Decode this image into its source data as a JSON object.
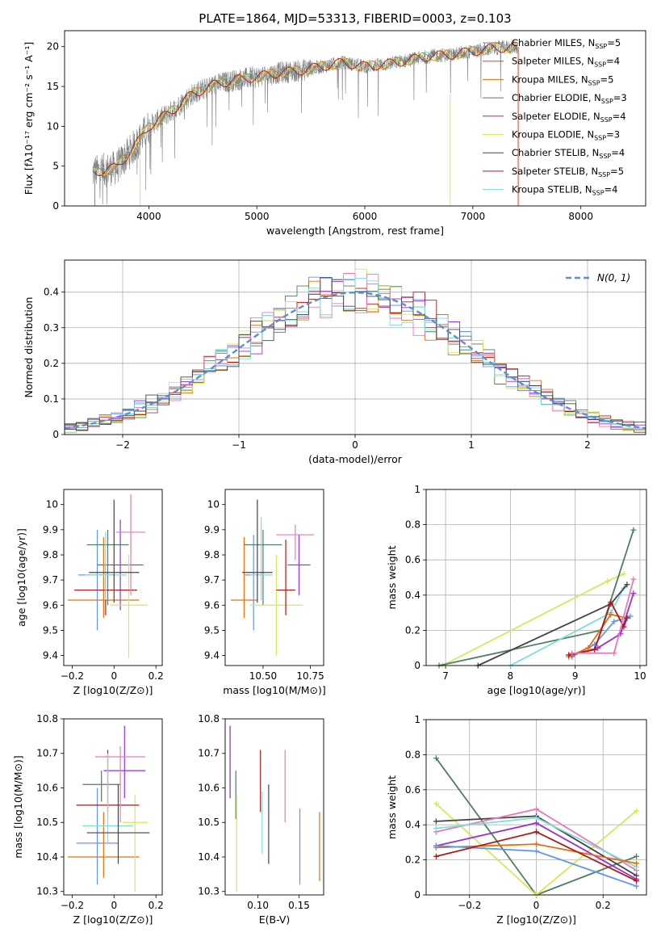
{
  "figure_title": "PLATE=1864, MJD=53313, FIBERID=0003, z=0.103",
  "colors": {
    "Chabrier MILES": "#6495ed",
    "Salpeter MILES": "#9932cc",
    "Kroupa MILES": "#e07010",
    "Chabrier ELODIE": "#4f7f5f",
    "Salpeter ELODIE": "#a020c0",
    "Kroupa ELODIE": "#d6e85a",
    "Chabrier STELIB": "#444444",
    "Salpeter STELIB": "#b01818",
    "Kroupa STELIB": "#7ddcdc",
    "pink": "#e77ab6",
    "data": "#808080",
    "gauss": "#5b8fd6"
  },
  "chart_data": [
    {
      "id": "spectrum",
      "type": "line",
      "xlabel": "wavelength [Angstrom, rest frame]",
      "ylabel": "Flux [fλ10⁻¹⁷ erg cm⁻² s⁻¹ A⁻¹]",
      "xlim": [
        3220,
        8600
      ],
      "ylim": [
        0,
        22
      ],
      "xticks": [
        4000,
        5000,
        6000,
        7000,
        8000
      ],
      "yticks": [
        0,
        5,
        10,
        15,
        20
      ],
      "continuum": {
        "x": [
          3480,
          3700,
          3900,
          4000,
          4200,
          4400,
          4600,
          4800,
          5000,
          5200,
          5400,
          5600,
          5800,
          6000,
          6200,
          6400,
          6600,
          6800,
          7000,
          7200,
          7420
        ],
        "y": [
          4.2,
          4.8,
          8.0,
          10.0,
          11.8,
          14.0,
          15.2,
          15.8,
          16.2,
          16.7,
          17.0,
          17.5,
          18.0,
          17.5,
          17.8,
          18.3,
          18.8,
          19.0,
          19.4,
          19.8,
          20.0
        ]
      },
      "legend": [
        {
          "label": "Chabrier MILES, N",
          "sub": "SSP",
          "tail": "=5",
          "color": "#808080"
        },
        {
          "label": "Salpeter MILES, N",
          "sub": "SSP",
          "tail": "=4",
          "color": "#e04020"
        },
        {
          "label": "Kroupa MILES, N",
          "sub": "SSP",
          "tail": "=5",
          "color": "#e07010"
        },
        {
          "label": "Chabrier ELODIE, N",
          "sub": "SSP",
          "tail": "=3",
          "color": "#4f7f5f"
        },
        {
          "label": "Salpeter ELODIE, N",
          "sub": "SSP",
          "tail": "=4",
          "color": "#a020c0"
        },
        {
          "label": "Kroupa ELODIE, N",
          "sub": "SSP",
          "tail": "=3",
          "color": "#d6e85a"
        },
        {
          "label": "Chabrier STELIB, N",
          "sub": "SSP",
          "tail": "=4",
          "color": "#444444"
        },
        {
          "label": "Salpeter STELIB, N",
          "sub": "SSP",
          "tail": "=5",
          "color": "#b01818"
        },
        {
          "label": "Kroupa STELIB, N",
          "sub": "SSP",
          "tail": "=4",
          "color": "#7ddcdc"
        }
      ]
    },
    {
      "id": "residuals",
      "type": "line",
      "xlabel": "(data-model)/error",
      "ylabel": "Normed distribution",
      "xlim": [
        -2.5,
        2.5
      ],
      "ylim": [
        0,
        0.49
      ],
      "xticks": [
        -2,
        -1,
        0,
        1,
        2
      ],
      "yticks": [
        0.0,
        0.1,
        0.2,
        0.3,
        0.4
      ],
      "legend": "N(0, 1)",
      "bin_width": 0.1,
      "series_colors": [
        "#6495ed",
        "#9932cc",
        "#e07010",
        "#4f7f5f",
        "#d6e85a",
        "#b01818",
        "#e77ab6",
        "#7ddcdc",
        "#444444"
      ]
    },
    {
      "id": "age_vs_Z",
      "type": "scatter",
      "xlabel": "Z [log10(Z/Z⊙)]",
      "ylabel": "age  [log10(age/yr)]",
      "xlim": [
        -0.24,
        0.23
      ],
      "ylim": [
        9.36,
        10.06
      ],
      "xticks": [
        -0.2,
        0.0,
        0.2
      ],
      "yticks": [
        9.4,
        9.5,
        9.6,
        9.7,
        9.8,
        9.9,
        10.0
      ],
      "points": [
        {
          "x": -0.08,
          "y": 9.72,
          "xerr": 0.09,
          "yerr": [
            0.22,
            0.18
          ],
          "c": "#6495ed"
        },
        {
          "x": 0.03,
          "y": 9.76,
          "xerr": 0.11,
          "yerr": [
            0.18,
            0.18
          ],
          "c": "#9932cc"
        },
        {
          "x": -0.05,
          "y": 9.62,
          "xerr": 0.17,
          "yerr": [
            0.07,
            0.25
          ],
          "c": "#e07010"
        },
        {
          "x": -0.03,
          "y": 9.84,
          "xerr": 0.1,
          "yerr": [
            0.24,
            0.06
          ],
          "c": "#4f7f5f"
        },
        {
          "x": 0.07,
          "y": 9.6,
          "xerr": 0.09,
          "yerr": [
            0.21,
            0.2
          ],
          "c": "#d6e85a"
        },
        {
          "x": -0.04,
          "y": 9.66,
          "xerr": 0.15,
          "yerr": [
            0.1,
            0.1
          ],
          "c": "#b01818"
        },
        {
          "x": 0.08,
          "y": 9.89,
          "xerr": 0.07,
          "yerr": [
            0.25,
            0.15
          ],
          "c": "#e77ab6"
        },
        {
          "x": -0.04,
          "y": 9.72,
          "xerr": 0.1,
          "yerr": [
            0.1,
            0.17
          ],
          "c": "#7ddcdc"
        },
        {
          "x": 0.0,
          "y": 9.73,
          "xerr": 0.12,
          "yerr": [
            0.12,
            0.29
          ],
          "c": "#444444"
        }
      ]
    },
    {
      "id": "age_vs_mass",
      "type": "scatter",
      "xlabel": "mass [log10(M/M⊙)]",
      "ylabel": "",
      "xlim": [
        10.3,
        10.82
      ],
      "ylim": [
        9.36,
        10.06
      ],
      "xticks": [
        10.5,
        10.75
      ],
      "xtick_labels": [
        "10.50",
        "10.75"
      ],
      "yticks": [
        9.4,
        9.5,
        9.6,
        9.7,
        9.8,
        9.9,
        10.0
      ],
      "points": [
        {
          "x": 10.45,
          "y": 9.72,
          "xerr": 0.05,
          "yerr": [
            0.22,
            0.16
          ],
          "c": "#6495ed"
        },
        {
          "x": 10.69,
          "y": 9.76,
          "xerr": 0.06,
          "yerr": [
            0.12,
            0.12
          ],
          "c": "#9932cc"
        },
        {
          "x": 10.4,
          "y": 9.62,
          "xerr": 0.07,
          "yerr": [
            0.07,
            0.25
          ],
          "c": "#e07010"
        },
        {
          "x": 10.5,
          "y": 9.84,
          "xerr": 0.1,
          "yerr": [
            0.24,
            0.06
          ],
          "c": "#4f7f5f"
        },
        {
          "x": 10.57,
          "y": 9.6,
          "xerr": 0.14,
          "yerr": [
            0.2,
            0.2
          ],
          "c": "#d6e85a"
        },
        {
          "x": 10.62,
          "y": 9.66,
          "xerr": 0.05,
          "yerr": [
            0.1,
            0.2
          ],
          "c": "#b01818"
        },
        {
          "x": 10.67,
          "y": 9.88,
          "xerr": 0.1,
          "yerr": [
            0.1,
            0.04
          ],
          "c": "#e77ab6"
        },
        {
          "x": 10.49,
          "y": 9.72,
          "xerr": 0.06,
          "yerr": [
            0.1,
            0.23
          ],
          "c": "#7ddcdc"
        },
        {
          "x": 10.47,
          "y": 9.73,
          "xerr": 0.08,
          "yerr": [
            0.12,
            0.29
          ],
          "c": "#444444"
        }
      ]
    },
    {
      "id": "weight_vs_age",
      "type": "line",
      "xlabel": "age  [log10(age/yr)]",
      "ylabel": "mass weight",
      "xlim": [
        6.7,
        10.1
      ],
      "ylim": [
        0,
        1
      ],
      "xticks": [
        7,
        8,
        9,
        10
      ],
      "yticks": [
        0.0,
        0.2,
        0.4,
        0.6,
        0.8,
        1.0
      ],
      "series": [
        {
          "c": "#d6e85a",
          "x": [
            6.95,
            9.5,
            9.75
          ],
          "y": [
            0.0,
            0.48,
            0.52
          ]
        },
        {
          "c": "#4f7f5f",
          "x": [
            6.9,
            9.4,
            9.9
          ],
          "y": [
            0.0,
            0.2,
            0.77
          ]
        },
        {
          "c": "#7ddcdc",
          "x": [
            8.0,
            9.55,
            9.75
          ],
          "y": [
            0.0,
            0.3,
            0.44
          ]
        },
        {
          "c": "#444444",
          "x": [
            7.5,
            9.55,
            9.8
          ],
          "y": [
            0.0,
            0.35,
            0.46
          ]
        },
        {
          "c": "#6495ed",
          "x": [
            8.95,
            9.3,
            9.6,
            9.85
          ],
          "y": [
            0.05,
            0.12,
            0.25,
            0.28
          ]
        },
        {
          "c": "#9932cc",
          "x": [
            8.95,
            9.35,
            9.7,
            9.9
          ],
          "y": [
            0.06,
            0.1,
            0.18,
            0.41
          ]
        },
        {
          "c": "#e07010",
          "x": [
            8.9,
            9.2,
            9.55,
            9.8
          ],
          "y": [
            0.05,
            0.1,
            0.29,
            0.27
          ]
        },
        {
          "c": "#b01818",
          "x": [
            8.9,
            9.3,
            9.55,
            9.75,
            9.8
          ],
          "y": [
            0.06,
            0.09,
            0.36,
            0.22,
            0.27
          ]
        },
        {
          "c": "#e77ab6",
          "x": [
            8.95,
            9.6,
            9.9
          ],
          "y": [
            0.07,
            0.07,
            0.49
          ]
        }
      ]
    },
    {
      "id": "mass_vs_Z",
      "type": "scatter",
      "xlabel": "Z [log10(Z/Z⊙)]",
      "ylabel": "mass [log10(M/M⊙)]",
      "xlim": [
        -0.24,
        0.23
      ],
      "ylim": [
        10.29,
        10.8
      ],
      "xticks": [
        -0.2,
        0.0,
        0.2
      ],
      "yticks": [
        10.3,
        10.4,
        10.5,
        10.6,
        10.7,
        10.8
      ],
      "points": [
        {
          "x": -0.08,
          "y": 10.44,
          "xerr": 0.1,
          "yerr": [
            0.12,
            0.16
          ],
          "c": "#6495ed"
        },
        {
          "x": 0.05,
          "y": 10.65,
          "xerr": 0.1,
          "yerr": [
            0.08,
            0.13
          ],
          "c": "#9932cc"
        },
        {
          "x": -0.05,
          "y": 10.4,
          "xerr": 0.17,
          "yerr": [
            0.06,
            0.13
          ],
          "c": "#e07010"
        },
        {
          "x": -0.06,
          "y": 10.61,
          "xerr": 0.09,
          "yerr": [
            0.05,
            0.04
          ],
          "c": "#4f7f5f"
        },
        {
          "x": 0.1,
          "y": 10.5,
          "xerr": 0.06,
          "yerr": [
            0.2,
            0.08
          ],
          "c": "#d6e85a"
        },
        {
          "x": -0.03,
          "y": 10.55,
          "xerr": 0.15,
          "yerr": [
            0.02,
            0.16
          ],
          "c": "#b01818"
        },
        {
          "x": 0.03,
          "y": 10.69,
          "xerr": 0.12,
          "yerr": [
            0.19,
            0.03
          ],
          "c": "#e77ab6"
        },
        {
          "x": -0.03,
          "y": 10.49,
          "xerr": 0.12,
          "yerr": [
            0.05,
            0.21
          ],
          "c": "#7ddcdc"
        },
        {
          "x": 0.02,
          "y": 10.47,
          "xerr": 0.15,
          "yerr": [
            0.09,
            0.14
          ],
          "c": "#444444"
        }
      ]
    },
    {
      "id": "mass_vs_EBV",
      "type": "scatter",
      "xlabel": "E(B-V)",
      "ylabel": "",
      "xlim": [
        0.06,
        0.18
      ],
      "ylim": [
        10.29,
        10.8
      ],
      "xticks": [
        0.1,
        0.15
      ],
      "xtick_labels": [
        "0.10",
        "0.15"
      ],
      "yticks": [
        10.3,
        10.4,
        10.5,
        10.6,
        10.7,
        10.8
      ],
      "points": [
        {
          "x": 0.066,
          "y": 10.67,
          "yerr": [
            0.1,
            0.11
          ],
          "c": "#a020c0"
        },
        {
          "x": 0.073,
          "y": 10.58,
          "yerr": [
            0.07,
            0.07
          ],
          "c": "#4f7f5f"
        },
        {
          "x": 0.074,
          "y": 10.44,
          "yerr": [
            0.14,
            0.14
          ],
          "c": "#d6e85a"
        },
        {
          "x": 0.103,
          "y": 10.62,
          "yerr": [
            0.09,
            0.09
          ],
          "c": "#b01818"
        },
        {
          "x": 0.105,
          "y": 10.5,
          "yerr": [
            0.09,
            0.09
          ],
          "c": "#7ddcdc"
        },
        {
          "x": 0.113,
          "y": 10.5,
          "yerr": [
            0.12,
            0.11
          ],
          "c": "#444444"
        },
        {
          "x": 0.133,
          "y": 10.6,
          "yerr": [
            0.1,
            0.11
          ],
          "c": "#e77ab6"
        },
        {
          "x": 0.151,
          "y": 10.43,
          "yerr": [
            0.11,
            0.11
          ],
          "c": "#6495ed"
        },
        {
          "x": 0.175,
          "y": 10.43,
          "yerr": [
            0.1,
            0.1
          ],
          "c": "#e07010"
        }
      ]
    },
    {
      "id": "weight_vs_Z",
      "type": "line",
      "xlabel": "Z [log10(Z/Z⊙)]",
      "ylabel": "mass weight",
      "xlim": [
        -0.33,
        0.33
      ],
      "ylim": [
        0,
        1
      ],
      "xticks": [
        -0.2,
        0.0,
        0.2
      ],
      "yticks": [
        0.0,
        0.2,
        0.4,
        0.6,
        0.8,
        1.0
      ],
      "series": [
        {
          "c": "#4f7f5f",
          "x": [
            -0.3,
            0.0,
            0.3
          ],
          "y": [
            0.78,
            0.0,
            0.22
          ]
        },
        {
          "c": "#d6e85a",
          "x": [
            -0.3,
            0.0,
            0.3
          ],
          "y": [
            0.52,
            0.0,
            0.48
          ]
        },
        {
          "c": "#444444",
          "x": [
            -0.3,
            0.0,
            0.3
          ],
          "y": [
            0.42,
            0.45,
            0.11
          ]
        },
        {
          "c": "#e77ab6",
          "x": [
            -0.3,
            0.0,
            0.3
          ],
          "y": [
            0.36,
            0.49,
            0.14
          ]
        },
        {
          "c": "#7ddcdc",
          "x": [
            -0.3,
            0.0,
            0.3
          ],
          "y": [
            0.38,
            0.44,
            0.16
          ]
        },
        {
          "c": "#9932cc",
          "x": [
            -0.3,
            0.0,
            0.3
          ],
          "y": [
            0.28,
            0.41,
            0.09
          ]
        },
        {
          "c": "#e07010",
          "x": [
            -0.3,
            0.0,
            0.3
          ],
          "y": [
            0.27,
            0.29,
            0.18
          ]
        },
        {
          "c": "#6495ed",
          "x": [
            -0.3,
            0.0,
            0.3
          ],
          "y": [
            0.28,
            0.25,
            0.05
          ]
        },
        {
          "c": "#b01818",
          "x": [
            -0.3,
            0.0,
            0.3
          ],
          "y": [
            0.22,
            0.36,
            0.08
          ]
        }
      ]
    }
  ]
}
